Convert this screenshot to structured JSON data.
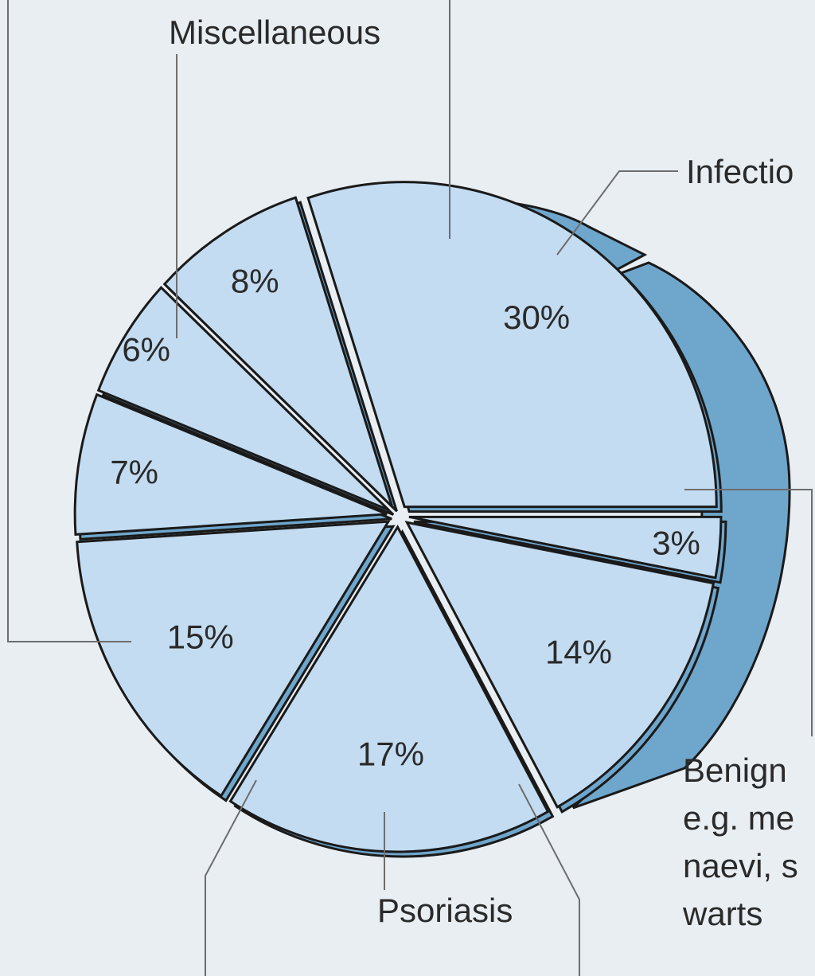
{
  "chart_data": {
    "type": "pie",
    "slices": [
      {
        "label": "",
        "value": 30,
        "value_label": "30%"
      },
      {
        "label": "",
        "value": 3,
        "value_label": "3%"
      },
      {
        "label": "",
        "value": 14,
        "value_label": "14%"
      },
      {
        "label": "",
        "value": 17,
        "value_label": "17%"
      },
      {
        "label": "",
        "value": 15,
        "value_label": "15%"
      },
      {
        "label": "",
        "value": 7,
        "value_label": "7%"
      },
      {
        "label": "",
        "value": 6,
        "value_label": "6%"
      },
      {
        "label": "",
        "value": 8,
        "value_label": "8%"
      }
    ],
    "annotations": {
      "miscellaneous": "Miscellaneous",
      "infections": "Infectio",
      "benign": [
        "Benign",
        "e.g. me",
        "naevi, s",
        "warts"
      ],
      "psoriasis": "Psoriasis"
    },
    "colors": {
      "face": "#c3dcf1",
      "side": "#6fa6cc",
      "outline": "#1a1a1a",
      "background": "#e9eef3"
    }
  }
}
